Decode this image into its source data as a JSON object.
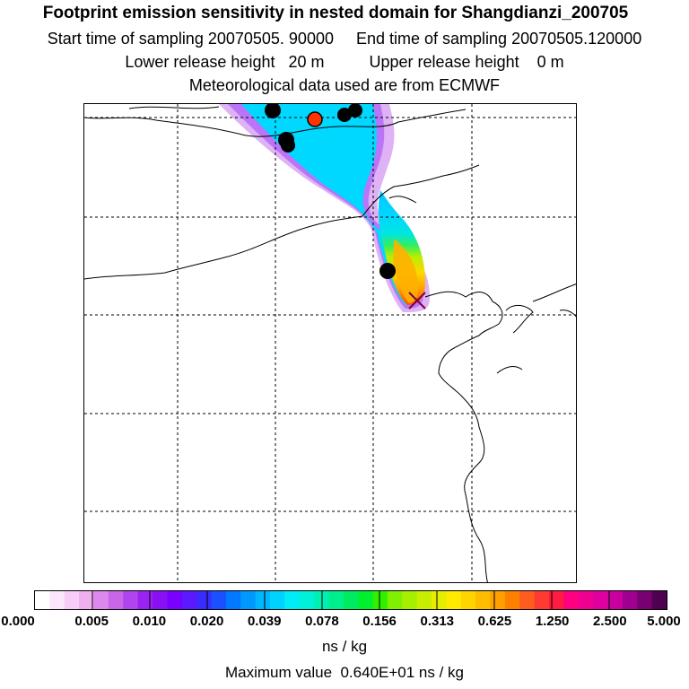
{
  "header": {
    "title": "Footprint emission sensitivity in nested domain for Shangdianzi_200705",
    "line2": "Start time of sampling 20070505. 90000     End time of sampling 20070505.120000",
    "line3": "Lower release height   20 m          Upper release height    0 m",
    "line4": "Meteorological data used are from ECMWF"
  },
  "colorbar": {
    "ticks": [
      "0.000",
      "0.005",
      "0.010",
      "0.020",
      "0.039",
      "0.078",
      "0.156",
      "0.313",
      "0.625",
      "1.250",
      "2.500",
      "5.000"
    ],
    "colors": [
      "#ffffff",
      "#fbe6fb",
      "#f7ccf7",
      "#f0b0f0",
      "#dd88ee",
      "#c966e8",
      "#b044ee",
      "#9a22f2",
      "#8a10f4",
      "#7a00ff",
      "#5c18ff",
      "#3a2cff",
      "#1a50ff",
      "#0078ff",
      "#0098ff",
      "#00b6ff",
      "#00d2ff",
      "#00ecf6",
      "#00f0d8",
      "#00f0b4",
      "#00ee8c",
      "#00ec60",
      "#00f030",
      "#30f000",
      "#80f000",
      "#a8ee00",
      "#c8ee00",
      "#e6ee00",
      "#ffea00",
      "#ffd400",
      "#ffbc00",
      "#ffa000",
      "#ff8000",
      "#ff5c20",
      "#ff3a30",
      "#ff1c40",
      "#ff0080",
      "#f00090",
      "#e000a0",
      "#c800a0",
      "#a00090",
      "#780070",
      "#500050"
    ],
    "units": "ns / kg",
    "max_text": "Maximum value  0.640E+01 ns / kg"
  },
  "map": {
    "receptor": "Shangdianzi",
    "receptor_color": "#ff3300",
    "marker_color": "#000000"
  }
}
